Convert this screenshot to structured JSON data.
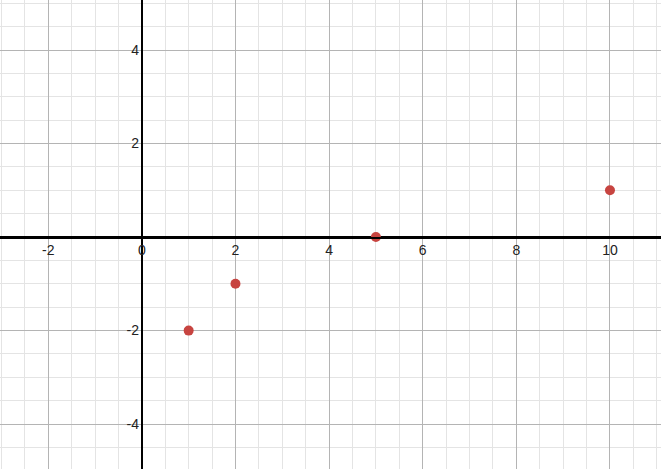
{
  "chart_data": {
    "type": "scatter",
    "x": [
      1,
      2,
      5,
      10
    ],
    "values": [
      -2,
      -1,
      0,
      1
    ],
    "color": "#c74440",
    "marker": "circle",
    "xlim": [
      -3.03,
      11.09
    ],
    "ylim": [
      -4.96,
      5.07
    ],
    "xticks": [
      -2,
      0,
      2,
      4,
      6,
      8,
      10
    ],
    "yticks": [
      -4,
      -2,
      2,
      4
    ],
    "grid": true
  }
}
